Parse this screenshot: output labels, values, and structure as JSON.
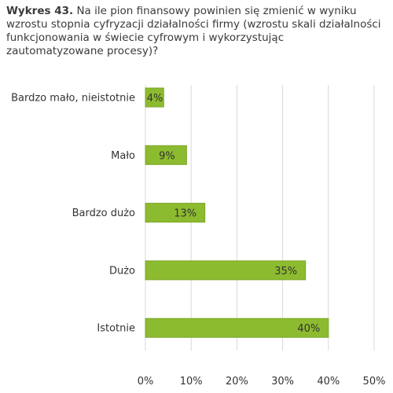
{
  "title": {
    "lead": "Wykres 43.",
    "text": "Na ile pion finansowy powinien się zmienić w wyniku wzrostu stopnia cyfryzacji działalności firmy (wzrostu skali działalności funkcjonowania w świecie cyfrowym i wykorzystując zautomatyzowane procesy)?"
  },
  "colors": {
    "bar": "#8dbb2f",
    "bar_stroke": "#7aa526",
    "grid": "#d9d9d9",
    "text": "#333333"
  },
  "chart_data": {
    "type": "bar",
    "orientation": "horizontal",
    "categories": [
      "Bardzo mało, nieistotnie",
      "Mało",
      "Bardzo dużo",
      "Dużo",
      "Istotnie"
    ],
    "values": [
      4,
      9,
      13,
      35,
      40
    ],
    "value_labels": [
      "4%",
      "9%",
      "13%",
      "35%",
      "40%"
    ],
    "xlim": [
      0,
      50
    ],
    "xticks": [
      0,
      10,
      20,
      30,
      40,
      50
    ],
    "xtick_labels": [
      "0%",
      "10%",
      "20%",
      "30%",
      "40%",
      "50%"
    ],
    "grid": "vertical"
  }
}
